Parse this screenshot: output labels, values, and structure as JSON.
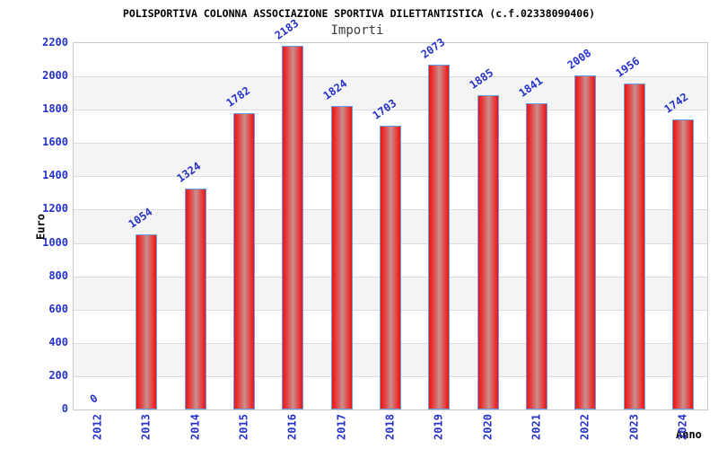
{
  "title": "POLISPORTIVA COLONNA ASSOCIAZIONE SPORTIVA DILETTANTISTICA (c.f.02338090406)",
  "subtitle": "Importi",
  "chart_data": {
    "type": "bar",
    "title": "Importi",
    "categories": [
      "2012",
      "2013",
      "2014",
      "2015",
      "2016",
      "2017",
      "2018",
      "2019",
      "2020",
      "2021",
      "2022",
      "2023",
      "2024"
    ],
    "values": [
      0,
      1054,
      1324,
      1782,
      2183,
      1824,
      1703,
      2073,
      1885,
      1841,
      2008,
      1956,
      1742
    ],
    "xlabel": "Anno",
    "ylabel": "Euro",
    "ylim": [
      0,
      2200
    ],
    "ytick_step": 200,
    "yticks": [
      0,
      200,
      400,
      600,
      800,
      1000,
      1200,
      1400,
      1600,
      1800,
      2000,
      2200
    ],
    "grid": true,
    "bands_alternating": true,
    "legend_position": "none",
    "colors": {
      "bar_edge": "#ee1313",
      "bar_mid": "#e05252",
      "bar_highlight": "#c89090",
      "bar_border": "#64a0e6",
      "tick_text": "#2632c8",
      "band": "#f4f4f4",
      "gridline": "#dcdcdc",
      "plot_border": "#c9c9c9",
      "title_text": "#000000",
      "subtitle_text": "#3c3c3c"
    }
  }
}
